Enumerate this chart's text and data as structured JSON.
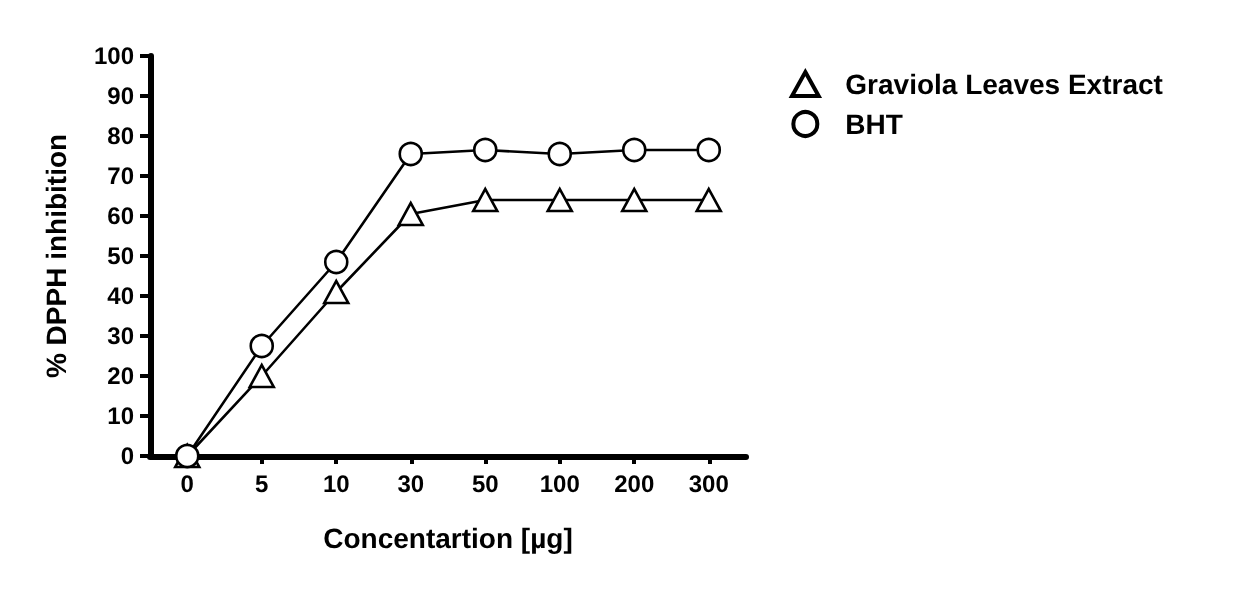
{
  "chart_data": {
    "type": "line",
    "xlabel": "Concentartion [µg]",
    "ylabel": "% DPPH inhibition",
    "categories": [
      "0",
      "5",
      "10",
      "30",
      "50",
      "100",
      "200",
      "300"
    ],
    "series": [
      {
        "name": "Graviola Leaves Extract",
        "color": "#000000",
        "marker": "triangle",
        "values": [
          0,
          20,
          41,
          60.5,
          64,
          64,
          64,
          64
        ]
      },
      {
        "name": "BHT",
        "color": "#000000",
        "marker": "circle",
        "values": [
          0,
          27.5,
          48.5,
          75.5,
          76.5,
          75.5,
          76.5,
          76.5
        ]
      }
    ],
    "ylim": [
      0,
      100
    ],
    "yticks": [
      0,
      10,
      20,
      30,
      40,
      50,
      60,
      70,
      80,
      90,
      100
    ],
    "grid": false,
    "legend": "top right",
    "line_style": "solid"
  }
}
